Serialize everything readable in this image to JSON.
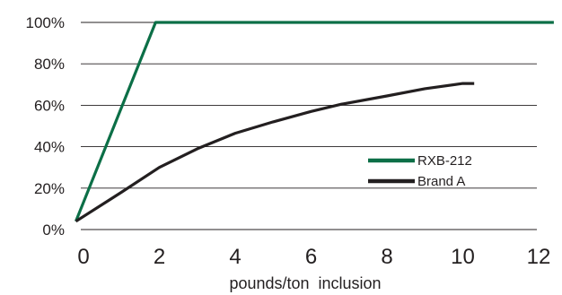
{
  "chart_data": {
    "type": "line",
    "xlabel": "pounds/ton  inclusion",
    "ylabel": "",
    "xlim": [
      0,
      12
    ],
    "ylim": [
      0,
      100
    ],
    "x_ticks": [
      "0",
      "2",
      "4",
      "6",
      "8",
      "10",
      "12"
    ],
    "y_ticks": [
      "0%",
      "20%",
      "40%",
      "60%",
      "80%",
      "100%"
    ],
    "grid": "horizontal",
    "legend_position": "lower-right",
    "series": [
      {
        "name": "RXB-212",
        "color": "#0c6f47",
        "points": [
          [
            -0.2,
            4
          ],
          [
            1.9,
            100
          ],
          [
            12.4,
            100
          ]
        ]
      },
      {
        "name": "Brand A",
        "color": "#231f20",
        "points": [
          [
            -0.2,
            4
          ],
          [
            1,
            18
          ],
          [
            2,
            30
          ],
          [
            3,
            39
          ],
          [
            4,
            46.5
          ],
          [
            5,
            52
          ],
          [
            6,
            57
          ],
          [
            6.8,
            60.5
          ],
          [
            8,
            64.5
          ],
          [
            9,
            68
          ],
          [
            10,
            70.5
          ],
          [
            10.3,
            70.5
          ]
        ]
      }
    ]
  }
}
